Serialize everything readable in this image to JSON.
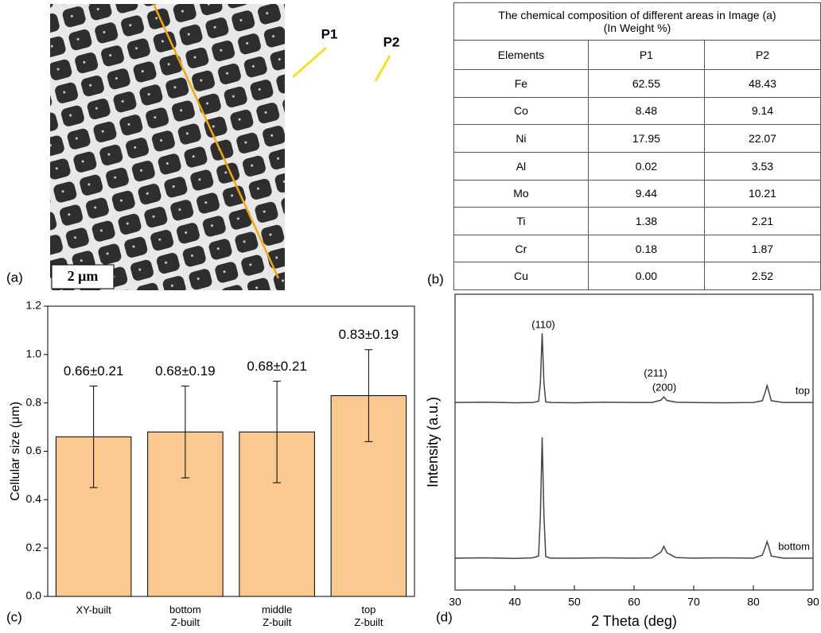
{
  "panel_labels": [
    "(a)",
    "(b)",
    "(c)",
    "(d)"
  ],
  "image": {
    "scale_bar": "2 μm",
    "markers": [
      "P1",
      "P2"
    ]
  },
  "table": {
    "title": "The chemical composition of different areas in Image (a)",
    "subtitle": "(In Weight %)",
    "header": [
      "Elements",
      "P1",
      "P2"
    ],
    "rows": [
      [
        "Fe",
        "62.55",
        "48.43"
      ],
      [
        "Co",
        "8.48",
        "9.14"
      ],
      [
        "Ni",
        "17.95",
        "22.07"
      ],
      [
        "Al",
        "0.02",
        "3.53"
      ],
      [
        "Mo",
        "9.44",
        "10.21"
      ],
      [
        "Ti",
        "1.38",
        "2.21"
      ],
      [
        "Cr",
        "0.18",
        "1.87"
      ],
      [
        "Cu",
        "0.00",
        "2.52"
      ]
    ]
  },
  "chart_data": [
    {
      "type": "bar",
      "ylabel": "Cellular size (μm)",
      "categories": [
        "XY-built",
        "bottom Z-built",
        "middle Z-built",
        "top Z-built"
      ],
      "values": [
        0.66,
        0.68,
        0.68,
        0.83
      ],
      "errors": [
        0.21,
        0.19,
        0.21,
        0.19
      ],
      "value_labels": [
        "0.66±0.21",
        "0.68±0.19",
        "0.68±0.21",
        "0.83±0.19"
      ],
      "color": "#f9c98f",
      "ylim": [
        0,
        1.2
      ],
      "yticks": [
        {
          "value": 0,
          "label": "0.0"
        },
        0.2,
        0.4,
        0.6,
        0.8,
        {
          "value": 1,
          "label": "1.0"
        },
        1.2
      ]
    },
    {
      "type": "line",
      "xlabel": "2 Theta (deg)",
      "ylabel": "Intensity (a.u.)",
      "x": [
        30,
        35,
        40,
        43,
        44,
        44.3,
        44.6,
        44.9,
        45.2,
        46,
        50,
        55,
        60,
        63,
        64.5,
        65,
        65.5,
        67,
        70,
        75,
        80,
        81.5,
        82,
        82.3,
        82.6,
        83,
        85,
        90
      ],
      "series": [
        {
          "name": "top",
          "color": "#444444",
          "values": [
            63.4,
            63.5,
            63.3,
            63.4,
            63.8,
            70,
            86.8,
            70,
            63.6,
            63.4,
            63.3,
            63.5,
            63.4,
            63.4,
            64.2,
            65.3,
            64.1,
            63.5,
            63.4,
            63.3,
            63.4,
            64,
            67,
            69.1,
            67,
            64,
            63.4,
            63.4
          ]
        },
        {
          "name": "bottom",
          "color": "#444444",
          "values": [
            10.8,
            10.9,
            10.7,
            10.9,
            11.5,
            25,
            51.6,
            25,
            11.3,
            10.8,
            10.8,
            10.9,
            10.8,
            10.9,
            12.8,
            14.8,
            12.6,
            11,
            10.8,
            10.9,
            10.8,
            11.8,
            14.5,
            16.4,
            14.5,
            11.5,
            10.8,
            10.8
          ]
        }
      ],
      "annotations": [
        "(110)",
        "(200)",
        "(211)"
      ],
      "xlim": [
        30,
        90
      ],
      "ylim": [
        0,
        100
      ],
      "xticks": [
        30,
        40,
        50,
        60,
        70,
        80,
        90
      ]
    }
  ]
}
